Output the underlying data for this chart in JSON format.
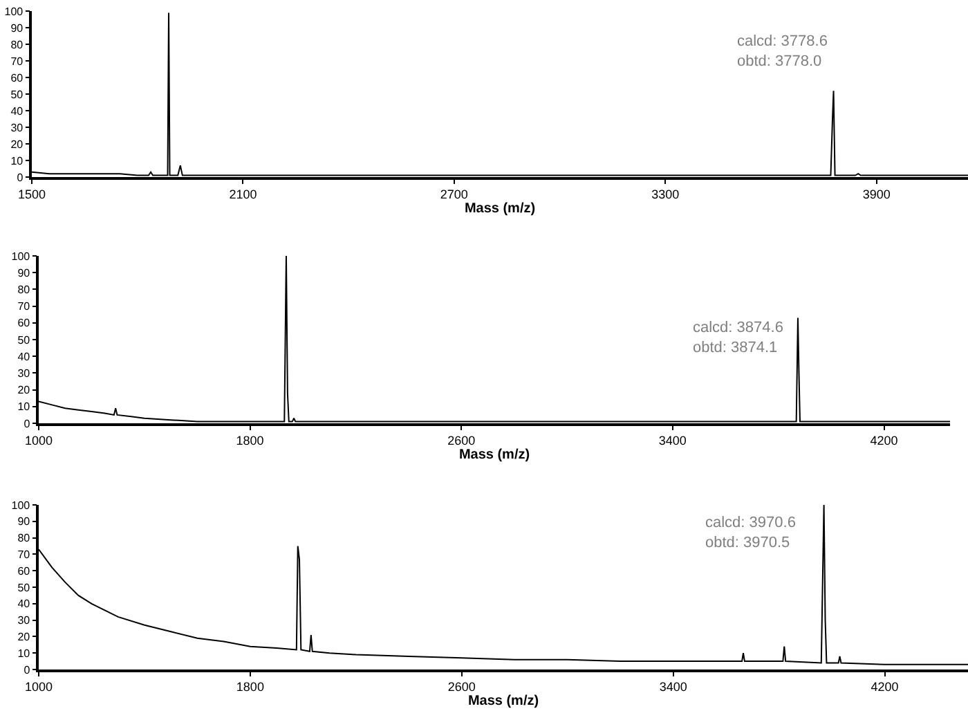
{
  "chart_data": [
    {
      "type": "line",
      "xlabel": "Mass (m/z)",
      "annotations": [
        "calcd: 3778.6\nobtd: 3778.0"
      ],
      "xlim": [
        1500,
        4160
      ],
      "xticks": [
        1500,
        2100,
        2700,
        3300,
        3900
      ],
      "ylim": [
        0,
        100
      ],
      "yticks": [
        0,
        10,
        20,
        30,
        40,
        50,
        60,
        70,
        80,
        90,
        100
      ],
      "marker": "none",
      "line_style": "solid",
      "series": [
        {
          "color": "#000000",
          "x": [
            1500,
            1550,
            1600,
            1650,
            1700,
            1750,
            1800,
            1832,
            1838,
            1844,
            1880,
            1886,
            1889,
            1892,
            1915,
            1922,
            1928,
            1950,
            2000,
            2050,
            2100,
            2400,
            2600,
            2640,
            2660,
            3000,
            3500,
            3770,
            3775,
            3778,
            3782,
            3840,
            3848,
            3855,
            4000,
            4160
          ],
          "values": [
            3,
            2,
            2,
            2,
            2,
            2,
            1,
            1,
            3,
            1,
            1,
            1,
            99,
            1,
            1,
            7,
            1,
            1,
            1,
            1,
            1,
            1,
            1,
            1,
            1,
            1,
            1,
            1,
            35,
            52,
            1,
            1,
            2,
            1,
            1,
            1
          ]
        }
      ]
    },
    {
      "type": "line",
      "xlabel": "Mass (m/z)",
      "annotations": [
        "calcd: 3874.6\nobtd: 3874.1"
      ],
      "xlim": [
        1000,
        4450
      ],
      "xticks": [
        1000,
        1800,
        2600,
        3400,
        4200
      ],
      "ylim": [
        0,
        100
      ],
      "yticks": [
        0,
        10,
        20,
        30,
        40,
        50,
        60,
        70,
        80,
        90,
        100
      ],
      "marker": "none",
      "line_style": "solid",
      "series": [
        {
          "color": "#000000",
          "x": [
            1000,
            1050,
            1100,
            1150,
            1200,
            1250,
            1285,
            1291,
            1297,
            1350,
            1400,
            1500,
            1600,
            1700,
            1800,
            1930,
            1937,
            1942,
            1947,
            1960,
            1966,
            1972,
            2200,
            2600,
            3000,
            3400,
            3868,
            3874,
            3878,
            3882,
            4000,
            4100,
            4450
          ],
          "values": [
            13,
            11,
            9,
            8,
            7,
            6,
            5,
            9,
            5,
            4,
            3,
            2,
            1,
            1,
            1,
            1,
            100,
            18,
            1,
            1,
            3,
            1,
            1,
            1,
            1,
            1,
            1,
            63,
            30,
            1,
            1,
            1,
            1
          ]
        }
      ]
    },
    {
      "type": "line",
      "xlabel": "Mass (m/z)",
      "annotations": [
        "calcd: 3970.6\nobtd: 3970.5"
      ],
      "xlim": [
        1000,
        4515
      ],
      "xticks": [
        1000,
        1800,
        2600,
        3400,
        4200
      ],
      "ylim": [
        0,
        100
      ],
      "yticks": [
        0,
        10,
        20,
        30,
        40,
        50,
        60,
        70,
        80,
        90,
        100
      ],
      "marker": "none",
      "line_style": "solid",
      "series": [
        {
          "color": "#000000",
          "x": [
            1000,
            1050,
            1100,
            1150,
            1200,
            1250,
            1300,
            1400,
            1500,
            1600,
            1700,
            1800,
            1900,
            1975,
            1980,
            1986,
            1992,
            2025,
            2030,
            2035,
            2100,
            2200,
            2400,
            2600,
            2800,
            3000,
            3200,
            3400,
            3600,
            3660,
            3665,
            3670,
            3815,
            3820,
            3825,
            3960,
            3970,
            3975,
            3980,
            4025,
            4030,
            4035,
            4200,
            4400,
            4515
          ],
          "values": [
            73,
            62,
            53,
            45,
            40,
            36,
            32,
            27,
            23,
            19,
            17,
            14,
            13,
            12,
            75,
            67,
            12,
            11,
            21,
            11,
            10,
            9,
            8,
            7,
            6,
            6,
            5,
            5,
            5,
            5,
            10,
            5,
            5,
            14,
            5,
            4,
            100,
            30,
            4,
            4,
            8,
            4,
            3,
            3,
            3
          ]
        }
      ]
    }
  ]
}
